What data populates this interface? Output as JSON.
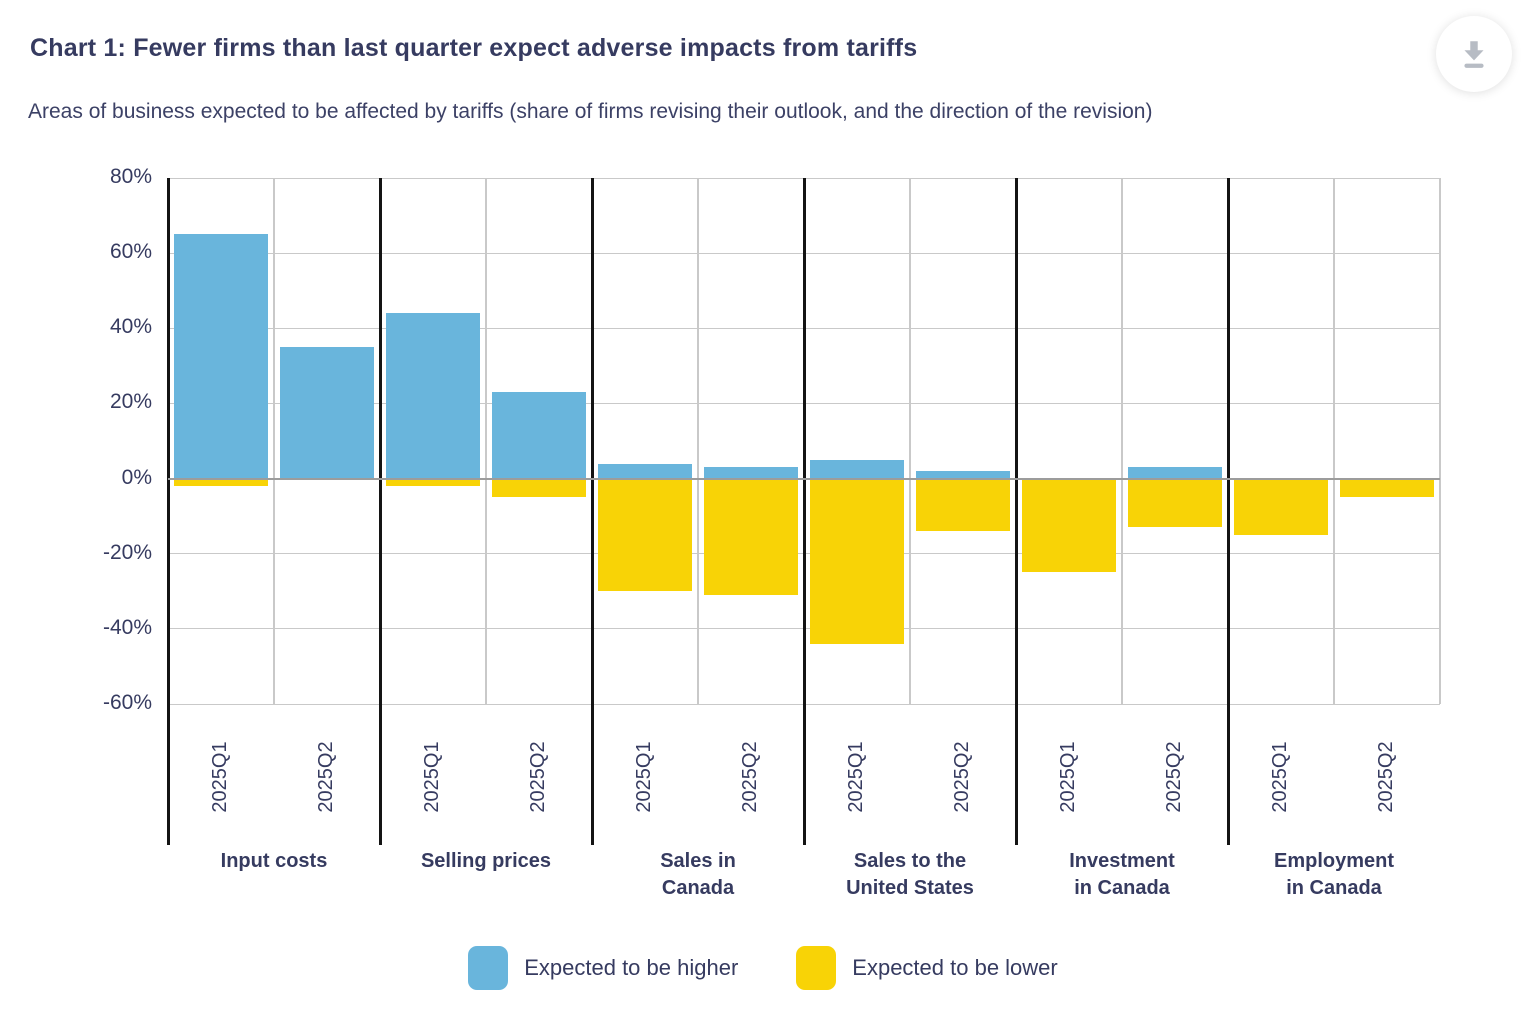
{
  "header": {
    "title": "Chart 1: Fewer firms than last quarter expect adverse impacts from tariffs",
    "subtitle": "Areas of business expected to be affected by tariffs (share of firms revising their outlook, and the direction of the revision)"
  },
  "icons": {
    "download": "download-icon"
  },
  "colors": {
    "higher": "#69b5dc",
    "lower": "#f8d306",
    "text": "#363b60",
    "grid": "#c9c9c9",
    "zero_line": "#9c9c9c",
    "separator": "#141414",
    "download_icon": "#b7bcc4"
  },
  "chart_data": {
    "type": "bar",
    "title": "Chart 1: Fewer firms than last quarter expect adverse impacts from tariffs",
    "subtitle": "Areas of business expected to be affected by tariffs (share of firms revising their outlook, and the direction of the revision)",
    "unit": "%",
    "ylim": [
      -60,
      80
    ],
    "ytick_step": 20,
    "ytick_labels": [
      "80%",
      "60%",
      "40%",
      "20%",
      "0%",
      "-20%",
      "-40%",
      "-60%"
    ],
    "grid": true,
    "legend_position": "bottom",
    "categories": [
      "Input costs",
      "Selling prices",
      "Sales in\nCanada",
      "Sales to the\nUnited States",
      "Investment\nin Canada",
      "Employment\nin Canada"
    ],
    "x_tick_labels": [
      "2025Q1",
      "2025Q2"
    ],
    "series": [
      {
        "name": "Expected to be higher",
        "color": "#69b5dc",
        "values": [
          [
            65,
            35
          ],
          [
            44,
            23
          ],
          [
            4,
            3
          ],
          [
            5,
            2
          ],
          [
            0,
            3
          ],
          [
            0,
            0
          ]
        ]
      },
      {
        "name": "Expected to be lower",
        "color": "#f8d306",
        "values": [
          [
            -2,
            0
          ],
          [
            -2,
            -5
          ],
          [
            -30,
            -31
          ],
          [
            -44,
            -14
          ],
          [
            -25,
            -13
          ],
          [
            -15,
            -5
          ]
        ]
      }
    ]
  },
  "legend": {
    "items": [
      {
        "label": "Expected to be higher",
        "color": "#69b5dc"
      },
      {
        "label": "Expected to be lower",
        "color": "#f8d306"
      }
    ]
  }
}
